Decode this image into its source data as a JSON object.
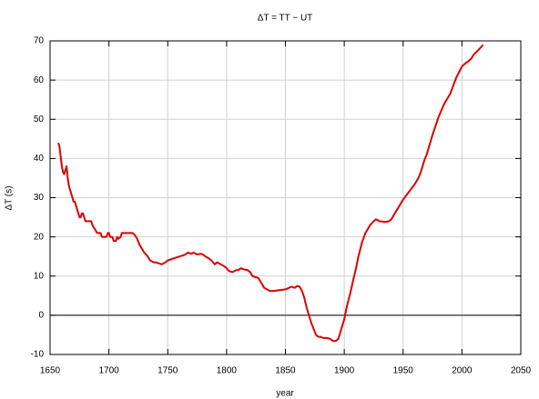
{
  "chart_data": {
    "type": "line",
    "title": "ΔT = TT − UT",
    "x_label": "year",
    "y_label": "ΔT (s)",
    "x": [
      1657,
      1658,
      1660,
      1661,
      1662,
      1663,
      1664,
      1665,
      1666,
      1668,
      1670,
      1671,
      1673,
      1675,
      1676,
      1677,
      1678,
      1680,
      1685,
      1686,
      1688,
      1690,
      1693,
      1694,
      1698,
      1699,
      1700,
      1701,
      1703,
      1704,
      1706,
      1707,
      1708,
      1710,
      1711,
      1720,
      1722,
      1724,
      1726,
      1728,
      1730,
      1733,
      1735,
      1738,
      1740,
      1745,
      1748,
      1750,
      1755,
      1760,
      1765,
      1767,
      1770,
      1772,
      1775,
      1778,
      1780,
      1782,
      1785,
      1787,
      1790,
      1792,
      1795,
      1798,
      1800,
      1802,
      1805,
      1808,
      1810,
      1812,
      1815,
      1818,
      1820,
      1822,
      1825,
      1827,
      1830,
      1832,
      1835,
      1837,
      1840,
      1845,
      1850,
      1853,
      1855,
      1858,
      1860,
      1862,
      1864,
      1866,
      1868,
      1870,
      1872,
      1874,
      1876,
      1878,
      1880,
      1882,
      1885,
      1888,
      1890,
      1892,
      1893,
      1895,
      1897,
      1900,
      1902,
      1905,
      1908,
      1910,
      1912,
      1915,
      1918,
      1920,
      1922,
      1925,
      1927,
      1930,
      1935,
      1938,
      1940,
      1945,
      1950,
      1955,
      1960,
      1963,
      1965,
      1968,
      1970,
      1975,
      1980,
      1985,
      1990,
      1995,
      2000,
      2003,
      2005,
      2008,
      2010,
      2015,
      2018
    ],
    "series": [
      {
        "name": "ΔT",
        "color": "#dd0000",
        "values": [
          44,
          43,
          38,
          36.5,
          36,
          37,
          38,
          35,
          33,
          31,
          29,
          29,
          27,
          25,
          25,
          26,
          26,
          24,
          24,
          23,
          22,
          21,
          21,
          20,
          20,
          21,
          21,
          20,
          20,
          19,
          19,
          20,
          19.5,
          20,
          21,
          21,
          20.5,
          19.5,
          18,
          17,
          16,
          15,
          14,
          13.5,
          13.5,
          13,
          13.5,
          14,
          14.5,
          15,
          15.5,
          16,
          15.7,
          16,
          15.5,
          15.7,
          15.5,
          15,
          14.5,
          14,
          13,
          13.5,
          13,
          12.5,
          12,
          11.3,
          11,
          11.5,
          11.5,
          12,
          11.7,
          11.5,
          11,
          10,
          9.7,
          9.5,
          8,
          7,
          6.5,
          6.2,
          6.2,
          6.4,
          6.6,
          7,
          7.3,
          7,
          7.5,
          7.3,
          6.3,
          4.5,
          2,
          0,
          -2,
          -3.5,
          -5,
          -5.5,
          -5.5,
          -5.8,
          -5.8,
          -6,
          -6.5,
          -6.6,
          -6.5,
          -6,
          -4,
          -1,
          2,
          5.5,
          9.5,
          12,
          15,
          18.5,
          21,
          22,
          23,
          24,
          24.5,
          24,
          23.8,
          24,
          24.5,
          27,
          29.5,
          31.5,
          33.5,
          35,
          36.5,
          39.5,
          41,
          46,
          50.5,
          54,
          56.5,
          60.5,
          63.5,
          64.3,
          64.7,
          65.5,
          66.5,
          68,
          69
        ]
      }
    ],
    "xlim": [
      1650,
      2050
    ],
    "xticks": [
      1650,
      1700,
      1750,
      1800,
      1850,
      1900,
      1950,
      2000,
      2050
    ],
    "ylim": [
      -10,
      70
    ],
    "yticks": [
      -10,
      0,
      10,
      20,
      30,
      40,
      50,
      60,
      70
    ],
    "grid": true
  }
}
